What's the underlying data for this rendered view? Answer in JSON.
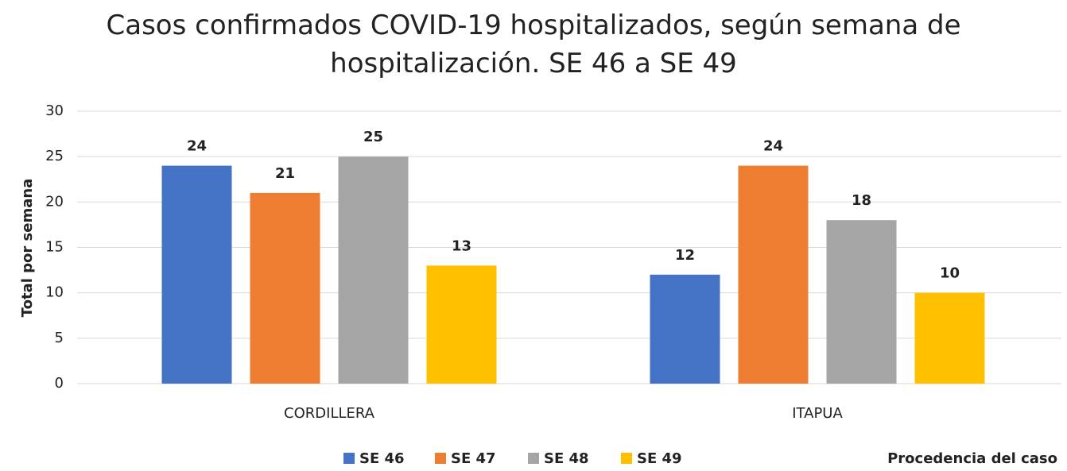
{
  "chart_data": {
    "type": "bar",
    "title": "Casos confirmados COVID-19 hospitalizados, según semana de hospitalización. SE 46 a SE 49",
    "xlabel": "Procedencia del caso",
    "ylabel": "Total por semana",
    "categories": [
      "CORDILLERA",
      "ITAPUA"
    ],
    "series": [
      {
        "name": "SE 46",
        "color": "#4472c4",
        "values": [
          24,
          12
        ]
      },
      {
        "name": "SE 47",
        "color": "#ed7d31",
        "values": [
          21,
          24
        ]
      },
      {
        "name": "SE 48",
        "color": "#a5a5a5",
        "values": [
          25,
          18
        ]
      },
      {
        "name": "SE 49",
        "color": "#ffc000",
        "values": [
          13,
          10
        ]
      }
    ],
    "ylim": [
      0,
      30
    ],
    "yticks": [
      0,
      5,
      10,
      15,
      20,
      25,
      30
    ],
    "grid": true,
    "legend": "bottom"
  }
}
